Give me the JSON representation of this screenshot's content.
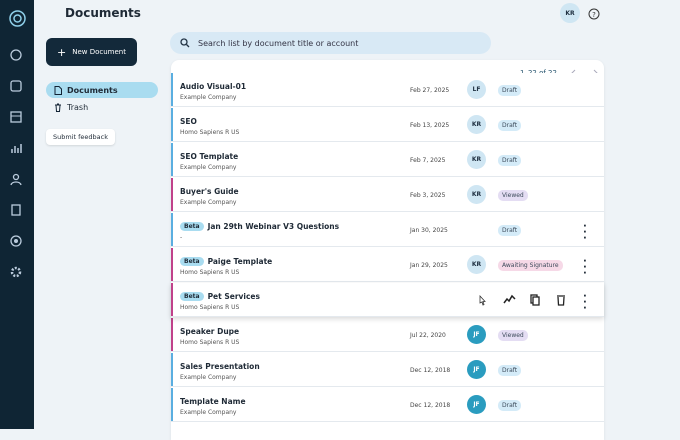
{
  "header": {
    "title": "Documents",
    "user_initials": "KR"
  },
  "sidebar": {
    "new_button": "New Document",
    "nav": [
      "Documents",
      "Trash"
    ],
    "feedback": "Submit feedback"
  },
  "search": {
    "placeholder": "Search list by document title or account"
  },
  "pagination": "1–22 of 22",
  "rows": [
    {
      "title": "Audio Visual-01",
      "company": "Example Company",
      "date": "Feb 27, 2025",
      "owner": "LF",
      "status": "Draft",
      "accent": "#5aaee0",
      "badge": "#d4ebf8"
    },
    {
      "title": "SEO",
      "company": "Homo Sapiens R US",
      "date": "Feb 13, 2025",
      "owner": "KR",
      "status": "Draft",
      "accent": "#5aaee0",
      "badge": "#d4ebf8"
    },
    {
      "title": "SEO Template",
      "company": "Example Company",
      "date": "Feb 7, 2025",
      "owner": "KR",
      "status": "Draft",
      "accent": "#5aaee0",
      "badge": "#d4ebf8"
    },
    {
      "title": "Buyer's Guide",
      "company": "Example Company",
      "date": "Feb 3, 2025",
      "owner": "KR",
      "status": "Viewed",
      "accent": "#c0418a",
      "badge": "#e4ddf3"
    },
    {
      "beta": "Beta",
      "title": "Jan 29th Webinar V3 Questions",
      "company": "-",
      "date": "Jan 30, 2025",
      "status": "Draft",
      "accent": "#5aaee0",
      "badge": "#d4ebf8"
    },
    {
      "beta": "Beta",
      "title": "Paige Template",
      "company": "Homo Sapiens R US",
      "date": "Jan 29, 2025",
      "owner": "KR",
      "status": "Awaiting Signature",
      "accent": "#c0418a",
      "badge": "#f6d9e7"
    },
    {
      "beta": "Beta",
      "title": "Pet Services",
      "company": "Homo Sapiens R US",
      "accent": "#c0418a"
    },
    {
      "title": "Speaker Dupe",
      "company": "Homo Sapiens R US",
      "date": "Jul 22, 2020",
      "owner": "JF",
      "status": "Viewed",
      "accent": "#c0418a",
      "badge": "#e4ddf3"
    },
    {
      "title": "Sales Presentation",
      "company": "Example Company",
      "date": "Dec 12, 2018",
      "owner": "JF",
      "status": "Draft",
      "accent": "#5aaee0",
      "badge": "#d4ebf8"
    },
    {
      "title": "Template Name",
      "company": "Example Company",
      "date": "Dec 12, 2018",
      "owner": "JF",
      "status": "Draft",
      "accent": "#5aaee0",
      "badge": "#d4ebf8"
    }
  ]
}
